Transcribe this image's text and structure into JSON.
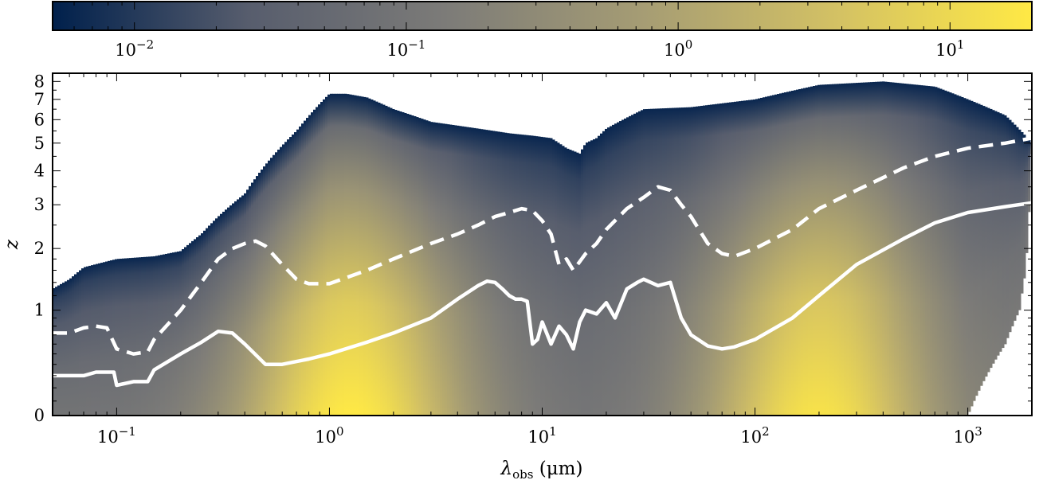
{
  "chart_data": {
    "type": "heatmap",
    "xlabel": "λobs (μm)",
    "xlabel_main": "λ",
    "xlabel_sub": "obs",
    "xlabel_unit": " (μm)",
    "ylabel": "z",
    "xscale": "log",
    "xlim": [
      0.05,
      2000
    ],
    "yscale": "log(1+z)",
    "ylim": [
      0,
      8.5
    ],
    "x_ticks": [
      {
        "value": 0.1,
        "base": "10",
        "exp": "−1"
      },
      {
        "value": 1,
        "base": "10",
        "exp": "0"
      },
      {
        "value": 10,
        "base": "10",
        "exp": "1"
      },
      {
        "value": 100,
        "base": "10",
        "exp": "2"
      },
      {
        "value": 1000,
        "base": "10",
        "exp": "3"
      }
    ],
    "y_ticks": [
      {
        "value": 0,
        "label": "0"
      },
      {
        "value": 1,
        "label": "1"
      },
      {
        "value": 2,
        "label": "2"
      },
      {
        "value": 3,
        "label": "3"
      },
      {
        "value": 4,
        "label": "4"
      },
      {
        "value": 5,
        "label": "5"
      },
      {
        "value": 6,
        "label": "6"
      },
      {
        "value": 7,
        "label": "7"
      },
      {
        "value": 8,
        "label": "8"
      }
    ],
    "colorbar": {
      "scale": "log",
      "range": [
        0.005,
        20
      ],
      "colormap": [
        "#00204c",
        "#575d6d",
        "#7c7b78",
        "#a59c74",
        "#d3c164",
        "#ffe945"
      ],
      "ticks": [
        {
          "value": 0.01,
          "base": "10",
          "exp": "−2"
        },
        {
          "value": 0.1,
          "base": "10",
          "exp": "−1"
        },
        {
          "value": 1,
          "base": "10",
          "exp": "0"
        },
        {
          "value": 10,
          "base": "10",
          "exp": "1"
        }
      ]
    },
    "upper_boundary": {
      "x": [
        0.05,
        0.06,
        0.07,
        0.1,
        0.15,
        0.2,
        0.25,
        0.3,
        0.4,
        0.5,
        0.7,
        1.0,
        1.2,
        1.5,
        2.0,
        3,
        5,
        7,
        9,
        11,
        13,
        15,
        16,
        18,
        20,
        30,
        50,
        100,
        200,
        400,
        700,
        1000,
        1500,
        2000
      ],
      "z": [
        1.3,
        1.45,
        1.65,
        1.8,
        1.85,
        1.95,
        2.3,
        2.7,
        3.3,
        4.2,
        5.5,
        7.3,
        7.3,
        7.1,
        6.5,
        5.9,
        5.6,
        5.4,
        5.3,
        5.2,
        4.8,
        4.6,
        5.0,
        5.2,
        5.6,
        6.5,
        6.6,
        7.0,
        7.8,
        8.0,
        7.7,
        7.0,
        6.2,
        5.0
      ]
    },
    "right_boundary": {
      "z": [
        0,
        0.6,
        1.0,
        1.5,
        2.0,
        3.0,
        4.0,
        5.0
      ],
      "x": [
        1000,
        1500,
        1750,
        1850,
        1900,
        1950,
        1980,
        2000
      ]
    },
    "series": [
      {
        "style": "solid",
        "color": "#ffffff",
        "x": [
          0.05,
          0.07,
          0.08,
          0.09,
          0.097,
          0.1,
          0.12,
          0.14,
          0.15,
          0.2,
          0.25,
          0.3,
          0.35,
          0.4,
          0.5,
          0.6,
          0.8,
          1.0,
          1.5,
          2,
          3,
          4,
          5,
          5.5,
          6,
          6.5,
          7,
          7.5,
          8,
          8.5,
          9,
          9.5,
          10,
          11,
          12,
          13,
          14,
          15,
          16,
          18,
          20,
          22,
          25,
          28,
          30,
          35,
          40,
          45,
          50,
          60,
          70,
          80,
          100,
          150,
          200,
          300,
          500,
          700,
          1000,
          1500,
          2000
        ],
        "z": [
          0.3,
          0.3,
          0.33,
          0.33,
          0.33,
          0.22,
          0.25,
          0.25,
          0.35,
          0.5,
          0.62,
          0.74,
          0.72,
          0.6,
          0.4,
          0.4,
          0.45,
          0.5,
          0.62,
          0.72,
          0.9,
          1.15,
          1.35,
          1.42,
          1.4,
          1.3,
          1.2,
          1.15,
          1.15,
          1.12,
          0.6,
          0.65,
          0.85,
          0.6,
          0.8,
          0.7,
          0.55,
          0.85,
          1.0,
          0.95,
          1.1,
          0.9,
          1.3,
          1.4,
          1.45,
          1.35,
          1.4,
          0.9,
          0.7,
          0.58,
          0.55,
          0.57,
          0.65,
          0.9,
          1.2,
          1.7,
          2.2,
          2.55,
          2.8,
          2.95,
          3.05
        ]
      },
      {
        "style": "dashed",
        "color": "#ffffff",
        "x": [
          0.05,
          0.06,
          0.07,
          0.08,
          0.09,
          0.1,
          0.12,
          0.14,
          0.15,
          0.2,
          0.25,
          0.3,
          0.35,
          0.4,
          0.45,
          0.5,
          0.6,
          0.7,
          0.8,
          1.0,
          1.5,
          2,
          3,
          4,
          5,
          6,
          7,
          8,
          9,
          10,
          11,
          12,
          13,
          14,
          15,
          16,
          18,
          20,
          25,
          30,
          35,
          40,
          45,
          50,
          60,
          70,
          80,
          100,
          150,
          200,
          300,
          500,
          700,
          1000,
          1500,
          2000
        ],
        "z": [
          0.72,
          0.72,
          0.78,
          0.8,
          0.78,
          0.55,
          0.5,
          0.52,
          0.65,
          1.0,
          1.4,
          1.8,
          2.0,
          2.1,
          2.15,
          2.05,
          1.7,
          1.45,
          1.38,
          1.38,
          1.6,
          1.8,
          2.1,
          2.3,
          2.5,
          2.7,
          2.8,
          2.9,
          2.85,
          2.6,
          2.3,
          1.7,
          1.8,
          1.6,
          1.75,
          1.9,
          2.1,
          2.4,
          2.9,
          3.2,
          3.5,
          3.4,
          3.0,
          2.7,
          2.1,
          1.9,
          1.85,
          2.0,
          2.4,
          2.9,
          3.4,
          4.1,
          4.5,
          4.8,
          5.0,
          5.2
        ]
      }
    ]
  }
}
